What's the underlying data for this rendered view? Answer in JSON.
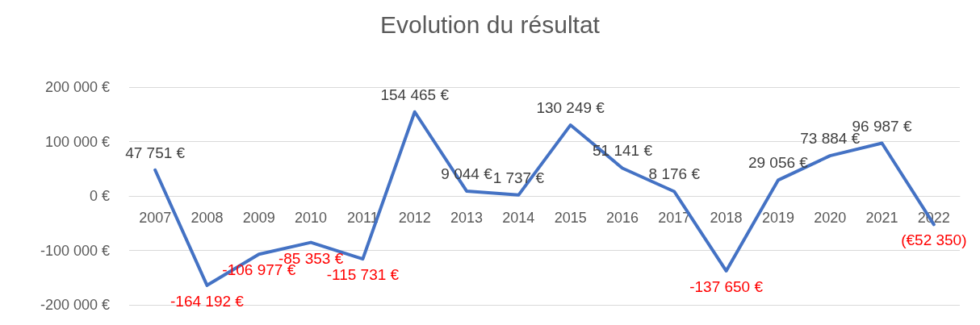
{
  "chart_data": {
    "type": "line",
    "title": "Evolution du résultat",
    "categories": [
      "2007",
      "2008",
      "2009",
      "2010",
      "2011",
      "2012",
      "2013",
      "2014",
      "2015",
      "2016",
      "2017",
      "2018",
      "2019",
      "2020",
      "2021",
      "2022"
    ],
    "series": [
      {
        "color": "#4472c4",
        "values": [
          47751,
          -164192,
          -106977,
          -85353,
          -115731,
          154465,
          9044,
          1737,
          130249,
          51141,
          8176,
          -137650,
          29056,
          73884,
          96987,
          -52350
        ],
        "value_labels": [
          "47 751 €",
          "-164 192 €",
          "-106 977 €",
          "-85 353 €",
          "-115 731 €",
          "154 465 €",
          "9 044 €",
          "1 737 €",
          "130 249 €",
          "51 141 €",
          "8 176 €",
          "-137 650 €",
          "29 056 €",
          "73 884 €",
          "96 987 €",
          "(€52 350)"
        ]
      }
    ],
    "ylim": [
      -200000,
      200000
    ],
    "yticks": [
      {
        "value": -200000,
        "label": "-200 000 €"
      },
      {
        "value": -100000,
        "label": "-100 000 €"
      },
      {
        "value": 0,
        "label": "0 €"
      },
      {
        "value": 100000,
        "label": "100 000 €"
      },
      {
        "value": 200000,
        "label": "200 000 €"
      }
    ],
    "grid": "y",
    "marker": "none",
    "line_style": "solid"
  }
}
